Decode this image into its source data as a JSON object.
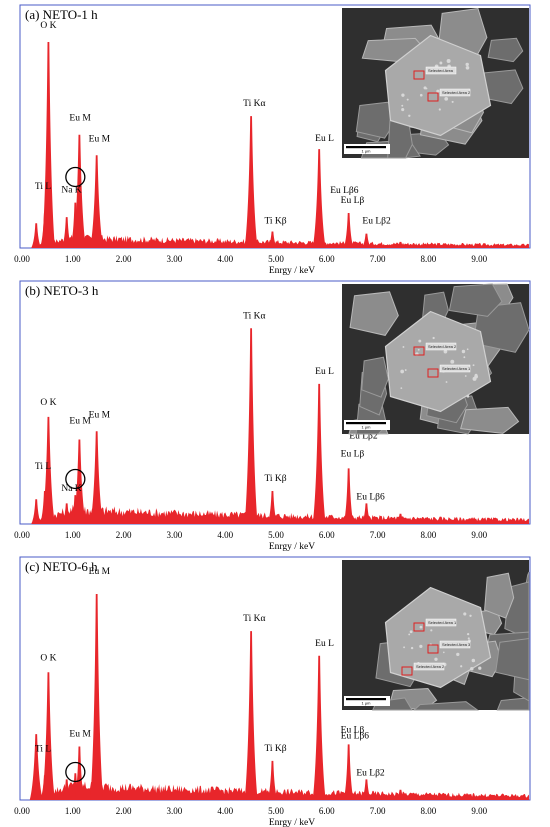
{
  "chart_data": [
    {
      "type": "area",
      "title": "(a) NETO-1 h",
      "xlabel": "Enrgy / keV",
      "xlim": [
        0,
        10
      ],
      "x_ticks": [
        "0.00",
        "1.00",
        "2.00",
        "3.00",
        "4.00",
        "5.00",
        "6.00",
        "7.00",
        "8.00",
        "9.00"
      ],
      "color": "#e8262b",
      "background_level": 0.05,
      "peaks": [
        {
          "x": 0.28,
          "y": 0.12
        },
        {
          "x": 0.45,
          "y": 0.17
        },
        {
          "x": 0.52,
          "y": 1.0
        },
        {
          "x": 0.88,
          "y": 0.15
        },
        {
          "x": 1.05,
          "y": 0.22
        },
        {
          "x": 1.13,
          "y": 0.55
        },
        {
          "x": 1.47,
          "y": 0.45
        },
        {
          "x": 4.51,
          "y": 0.64
        },
        {
          "x": 4.93,
          "y": 0.08
        },
        {
          "x": 5.85,
          "y": 0.48
        },
        {
          "x": 6.43,
          "y": 0.17
        },
        {
          "x": 6.78,
          "y": 0.07
        },
        {
          "x": 7.45,
          "y": 0.03
        }
      ],
      "labels": [
        {
          "text": "O K",
          "x": 0.52
        },
        {
          "text": "Ti L",
          "x": 0.45
        },
        {
          "text": "Na K",
          "x": 1.05
        },
        {
          "text": "Eu M",
          "x": 1.13
        },
        {
          "text": "Eu M",
          "x": 1.47
        },
        {
          "text": "Ti Kα",
          "x": 4.51
        },
        {
          "text": "Ti Kβ",
          "x": 4.93
        },
        {
          "text": "Eu L",
          "x": 5.85
        },
        {
          "text": "Eu Lβ6",
          "x": 6.5
        },
        {
          "text": "Eu Lβ",
          "x": 6.43
        },
        {
          "text": "Eu Lβ2",
          "x": 6.78
        }
      ],
      "circle_x": 1.05,
      "sem": {
        "tags": [
          "Selected Area",
          "Selected Area 2"
        ],
        "scale": "1 μm"
      }
    },
    {
      "type": "area",
      "title": "(b) NETO-3 h",
      "xlabel": "Enrgy / keV",
      "xlim": [
        0,
        10
      ],
      "x_ticks": [
        "0.00",
        "1.00",
        "2.00",
        "3.00",
        "4.00",
        "5.00",
        "6.00",
        "7.00",
        "8.00",
        "9.00"
      ],
      "color": "#e8262b",
      "background_level": 0.07,
      "peaks": [
        {
          "x": 0.28,
          "y": 0.12
        },
        {
          "x": 0.45,
          "y": 0.16
        },
        {
          "x": 0.52,
          "y": 0.52
        },
        {
          "x": 0.88,
          "y": 0.1
        },
        {
          "x": 1.05,
          "y": 0.14
        },
        {
          "x": 1.13,
          "y": 0.41
        },
        {
          "x": 1.47,
          "y": 0.45
        },
        {
          "x": 4.51,
          "y": 0.95
        },
        {
          "x": 4.93,
          "y": 0.16
        },
        {
          "x": 5.85,
          "y": 0.68
        },
        {
          "x": 6.43,
          "y": 0.27
        },
        {
          "x": 6.78,
          "y": 0.1
        },
        {
          "x": 7.45,
          "y": 0.05
        }
      ],
      "labels": [
        {
          "text": "O K",
          "x": 0.52
        },
        {
          "text": "Ti L",
          "x": 0.45
        },
        {
          "text": "Na K",
          "x": 1.05
        },
        {
          "text": "Eu M",
          "x": 1.13
        },
        {
          "text": "Eu M",
          "x": 1.47
        },
        {
          "text": "Ti Kα",
          "x": 4.51
        },
        {
          "text": "Ti Kβ",
          "x": 4.93
        },
        {
          "text": "Eu L",
          "x": 5.85
        },
        {
          "text": "Eu Lβ2",
          "x": 6.6
        },
        {
          "text": "Eu Lβ",
          "x": 6.43
        },
        {
          "text": "Eu Lβ6",
          "x": 6.78
        }
      ],
      "circle_x": 1.05,
      "sem": {
        "tags": [
          "Selected Area 2",
          "Selected Area 1"
        ],
        "scale": "1 μm"
      }
    },
    {
      "type": "area",
      "title": "(c) NETO-6 h",
      "xlabel": "Enrgy / keV",
      "xlim": [
        0,
        10
      ],
      "x_ticks": [
        "0.00",
        "1.00",
        "2.00",
        "3.00",
        "4.00",
        "5.00",
        "6.00",
        "7.00",
        "8.00",
        "9.00"
      ],
      "color": "#e8262b",
      "background_level": 0.07,
      "peaks": [
        {
          "x": 0.28,
          "y": 0.32
        },
        {
          "x": 0.45,
          "y": 0.12
        },
        {
          "x": 0.52,
          "y": 0.62
        },
        {
          "x": 0.88,
          "y": 0.1
        },
        {
          "x": 1.05,
          "y": 0.13
        },
        {
          "x": 1.13,
          "y": 0.26
        },
        {
          "x": 1.47,
          "y": 1.0
        },
        {
          "x": 4.51,
          "y": 0.82
        },
        {
          "x": 4.93,
          "y": 0.19
        },
        {
          "x": 5.85,
          "y": 0.7
        },
        {
          "x": 6.43,
          "y": 0.27
        },
        {
          "x": 6.78,
          "y": 0.1
        },
        {
          "x": 7.45,
          "y": 0.05
        }
      ],
      "labels": [
        {
          "text": "O K",
          "x": 0.52
        },
        {
          "text": "Ti L",
          "x": 0.45
        },
        {
          "text": "Eu M",
          "x": 1.13
        },
        {
          "text": "Eu M",
          "x": 1.47
        },
        {
          "text": "Ti Kα",
          "x": 4.51
        },
        {
          "text": "Ti Kβ",
          "x": 4.93
        },
        {
          "text": "Eu L",
          "x": 5.85
        },
        {
          "text": "Eu Lβ",
          "x": 6.43
        },
        {
          "text": "Eu Lβ2",
          "x": 6.7
        },
        {
          "text": "Eu Lβ6",
          "x": 6.55
        }
      ],
      "circle_x": 1.05,
      "sem": {
        "tags": [
          "Selected Area 1",
          "Selected Area 3",
          "Selected Area 2"
        ],
        "scale": "1 μm"
      }
    }
  ]
}
